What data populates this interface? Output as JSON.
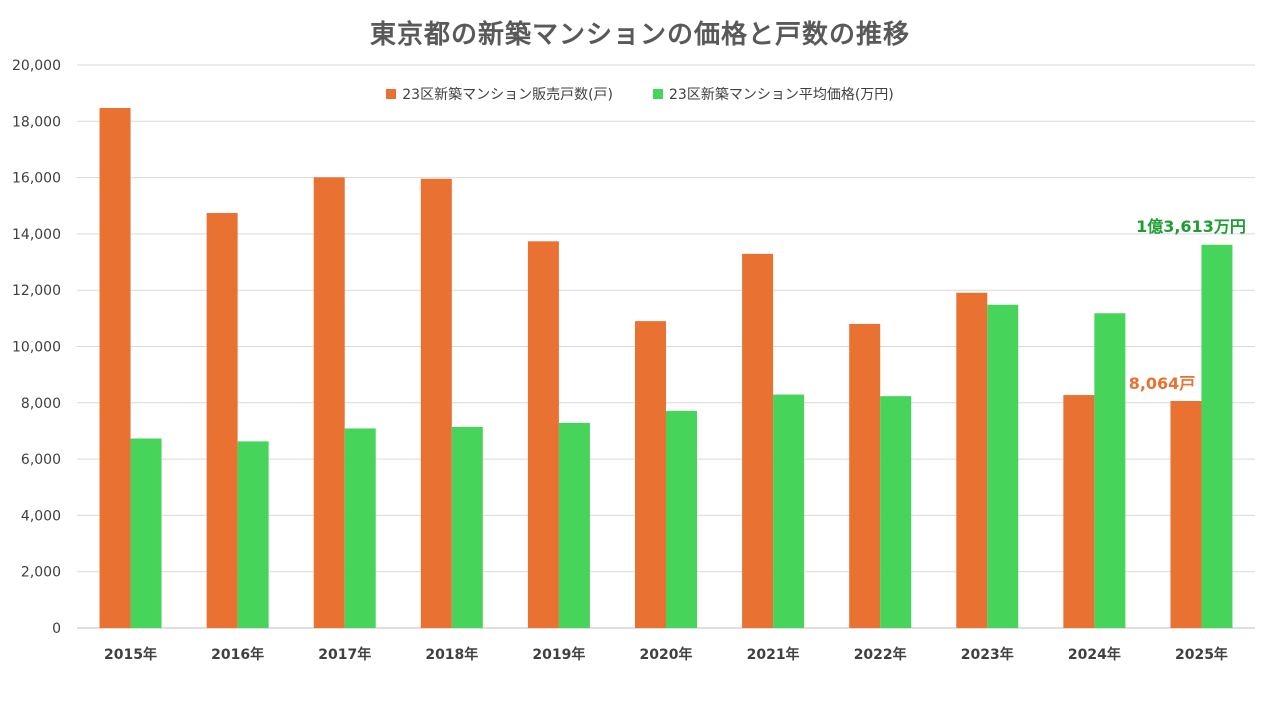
{
  "chart_data": {
    "type": "bar",
    "title": "東京都の新築マンションの価格と戸数の推移",
    "categories": [
      "2015年",
      "2016年",
      "2017年",
      "2018年",
      "2019年",
      "2020年",
      "2021年",
      "2022年",
      "2023年",
      "2024年",
      "2025年"
    ],
    "series": [
      {
        "name": "23区新築マンション販売戸数(戸)",
        "color": "#E97132",
        "values": [
          18472,
          14742,
          16010,
          15957,
          13737,
          10901,
          13290,
          10802,
          11909,
          8275,
          8064
        ]
      },
      {
        "name": "23区新築マンション平均価格(万円)",
        "color": "#47D45A",
        "values": [
          6732,
          6629,
          7089,
          7142,
          7286,
          7712,
          8293,
          8236,
          11483,
          11181,
          13613
        ]
      }
    ],
    "ylim": [
      0,
      20000
    ],
    "yticks": [
      "0",
      "2,000",
      "4,000",
      "6,000",
      "8,000",
      "10,000",
      "12,000",
      "14,000",
      "16,000",
      "18,000",
      "20,000"
    ],
    "legend_position": "top",
    "annotations": [
      {
        "text": "8,064戸",
        "series": 0,
        "category": 10,
        "color": "#E97132"
      },
      {
        "text": "1億3,613万円",
        "series": 1,
        "category": 10,
        "color": "#1E9E32"
      }
    ]
  }
}
